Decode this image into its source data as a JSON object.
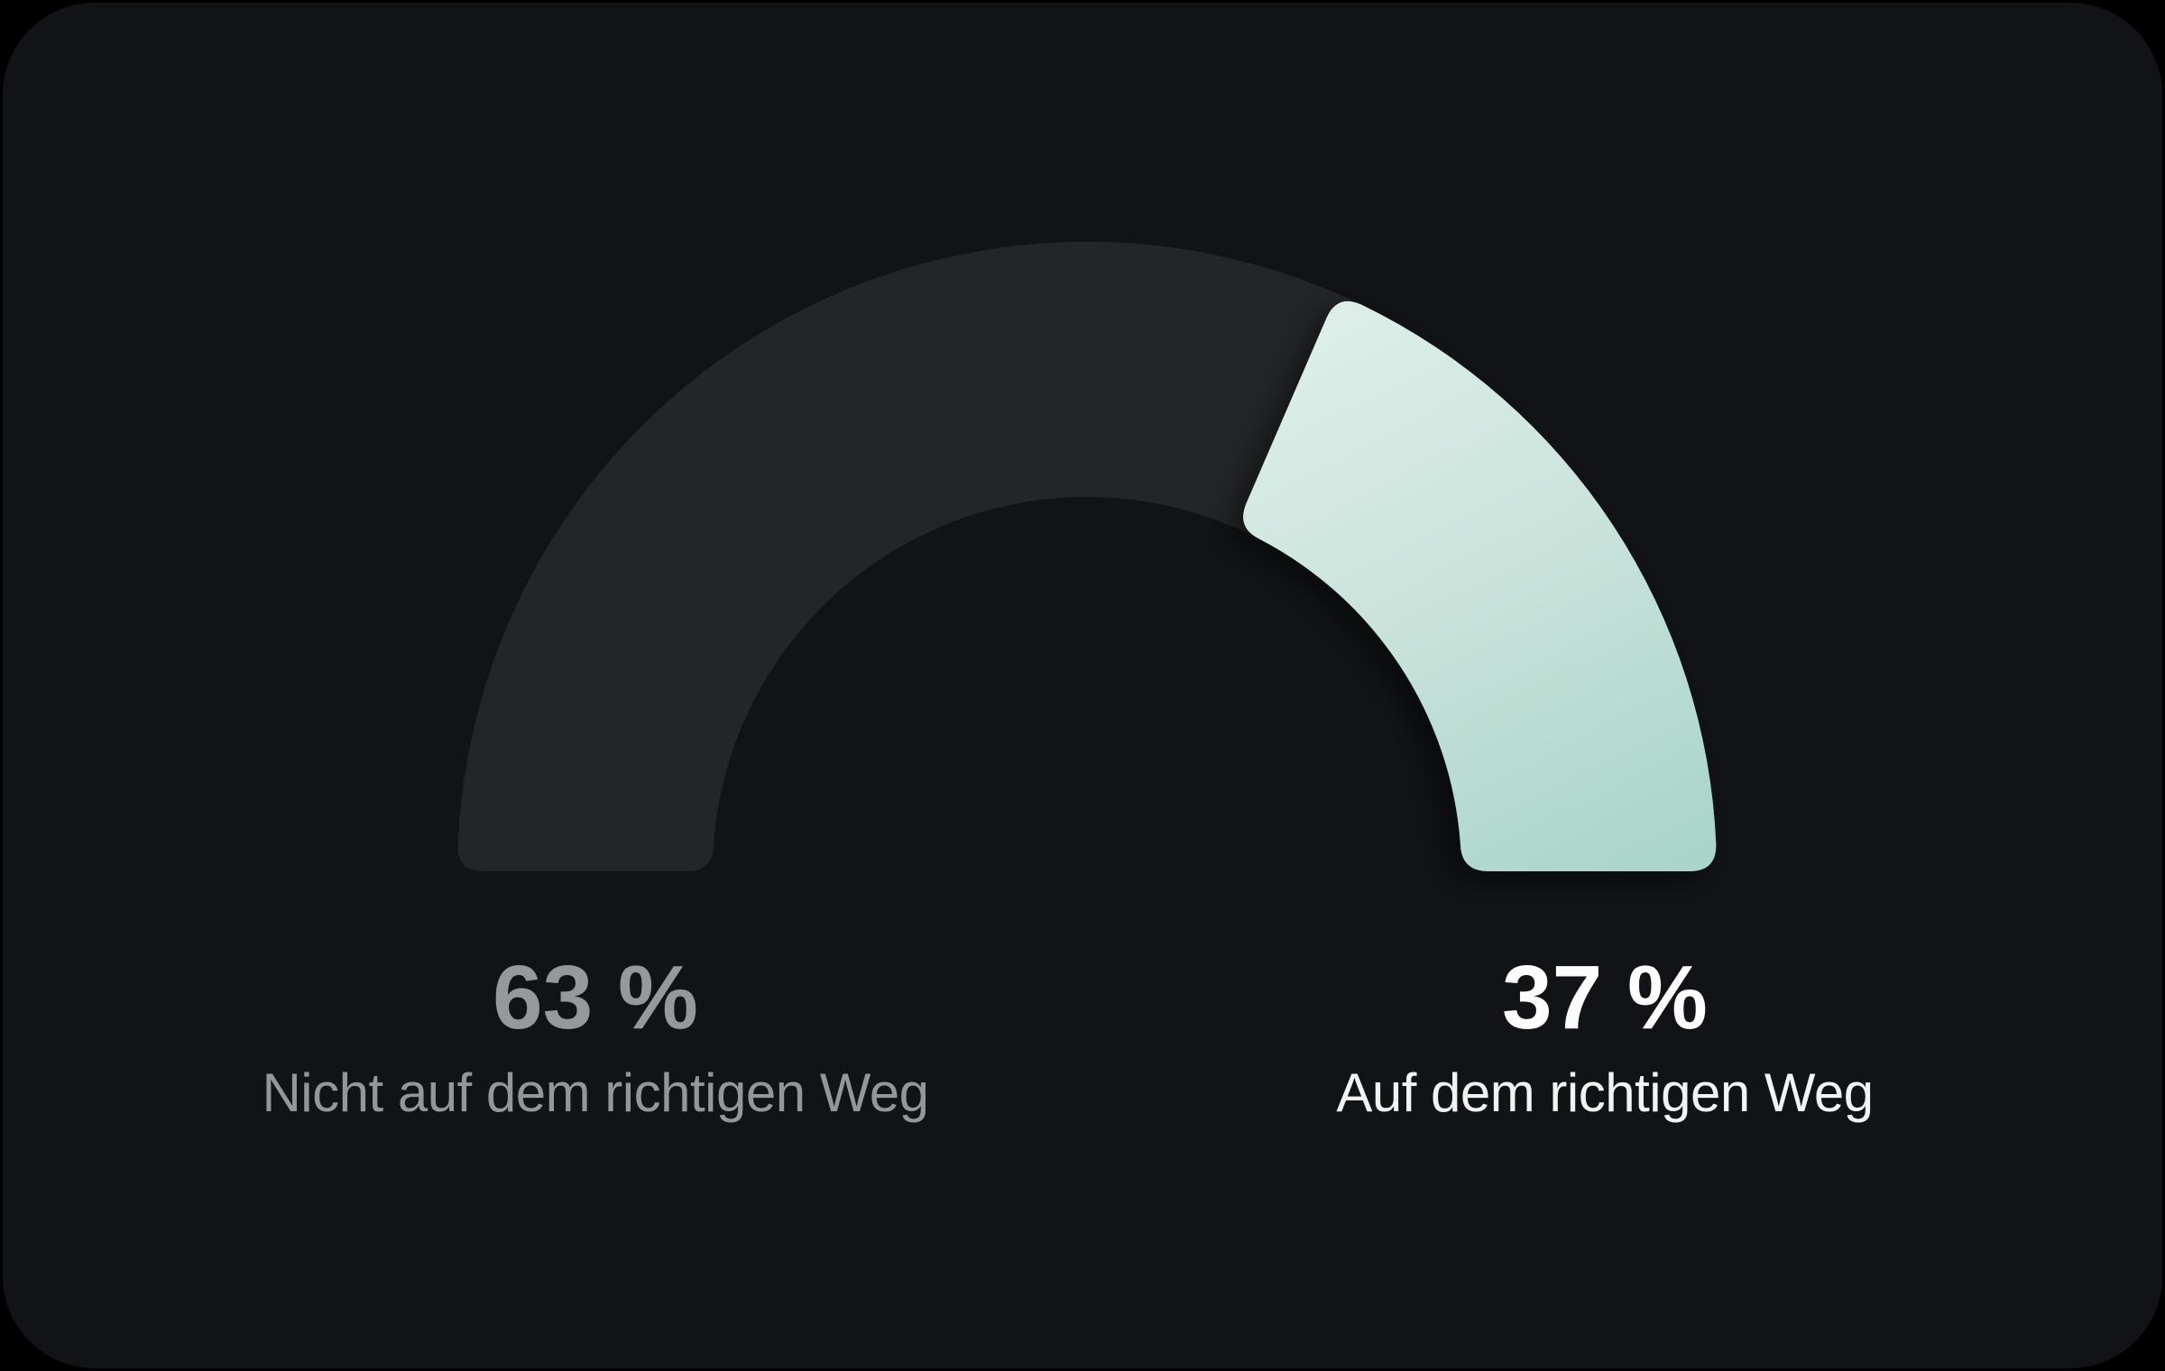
{
  "page_background": "#000000",
  "card_background": "#111316",
  "chart_data": {
    "type": "pie",
    "variant": "semicircle-donut-gauge",
    "unit": "%",
    "start_angle_deg": 180,
    "end_angle_deg": 0,
    "legend_position": "below",
    "segments": [
      {
        "id": "off-track",
        "label": "Nicht auf dem richtigen Weg",
        "value": 63,
        "display_value": "63 %",
        "color": "#232528",
        "value_text_color": "#96989b",
        "label_text_color": "#94969a"
      },
      {
        "id": "on-track",
        "label": "Auf dem richtigen Weg",
        "value": 37,
        "display_value": "37 %",
        "gradient": [
          "#e2f1ec",
          "#c9e3db",
          "#a8d3c8"
        ],
        "value_text_color": "#fdfdfd",
        "label_text_color": "#f2f4f4"
      }
    ]
  }
}
